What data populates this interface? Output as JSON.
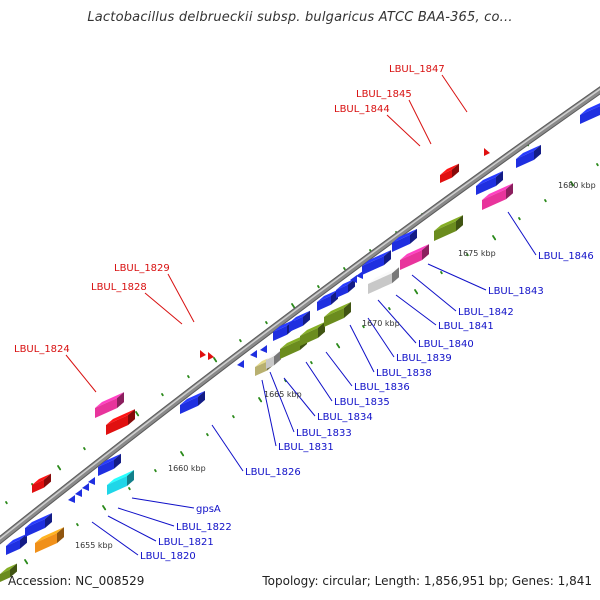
{
  "title": "Lactobacillus delbrueckii subsp. bulgaricus ATCC BAA-365, co...",
  "footer": {
    "accession": "Accession: NC_008529",
    "summary": "Topology: circular; Length: 1,856,951 bp; Genes: 1,841"
  },
  "colors": {
    "backbone": "#8a8a8a",
    "blue": "#1f2fe0",
    "pink": "#e8349c",
    "red": "#e01010",
    "olive": "#6b8c1e",
    "gray": "#c8c8c8",
    "cyan": "#1fd6e8",
    "orange": "#f0901a",
    "khaki": "#b8b070",
    "tick_green": "#2a8a1a",
    "label_blue": "#1010c8",
    "label_red": "#d81010"
  },
  "kbp_labels": [
    "1655 kbp",
    "1660 kbp",
    "1665 kbp",
    "1670 kbp",
    "1675 kbp",
    "1680 kbp"
  ],
  "genes_top_strand": [
    {
      "name": "LBUL_1824",
      "color_key": "red"
    },
    {
      "name": "LBUL_1828",
      "color_key": "red"
    },
    {
      "name": "LBUL_1829",
      "color_key": "red"
    },
    {
      "name": "LBUL_1844",
      "color_key": "red"
    },
    {
      "name": "LBUL_1845",
      "color_key": "red"
    },
    {
      "name": "LBUL_1847",
      "color_key": "red"
    }
  ],
  "genes_bottom_strand": [
    {
      "name": "LBUL_1820",
      "color_key": "blue"
    },
    {
      "name": "LBUL_1821",
      "color_key": "blue"
    },
    {
      "name": "LBUL_1822",
      "color_key": "blue"
    },
    {
      "name": "gpsA",
      "color_key": "blue"
    },
    {
      "name": "LBUL_1826",
      "color_key": "blue"
    },
    {
      "name": "LBUL_1831",
      "color_key": "blue"
    },
    {
      "name": "LBUL_1833",
      "color_key": "blue"
    },
    {
      "name": "LBUL_1834",
      "color_key": "blue"
    },
    {
      "name": "LBUL_1835",
      "color_key": "blue"
    },
    {
      "name": "LBUL_1836",
      "color_key": "blue"
    },
    {
      "name": "LBUL_1838",
      "color_key": "blue"
    },
    {
      "name": "LBUL_1839",
      "color_key": "blue"
    },
    {
      "name": "LBUL_1840",
      "color_key": "blue"
    },
    {
      "name": "LBUL_1841",
      "color_key": "blue"
    },
    {
      "name": "LBUL_1842",
      "color_key": "blue"
    },
    {
      "name": "LBUL_1843",
      "color_key": "blue"
    },
    {
      "name": "LBUL_1846",
      "color_key": "blue"
    }
  ]
}
